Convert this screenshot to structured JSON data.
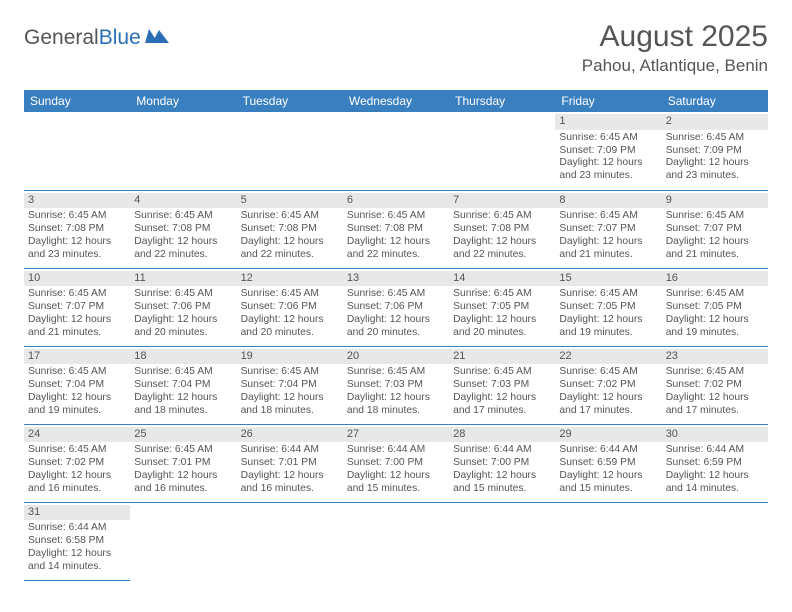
{
  "branding": {
    "logo_part1": "General",
    "logo_part2": "Blue",
    "logo_fill": "#2a6fb5"
  },
  "header": {
    "month_title": "August 2025",
    "location": "Pahou, Atlantique, Benin"
  },
  "styling": {
    "header_bg": "#3a7fc0",
    "header_text": "#ffffff",
    "daynum_bg": "#e8e8e8",
    "border_color": "#3a7fc0",
    "text_color": "#555555",
    "font_family": "Arial"
  },
  "weekdays": [
    "Sunday",
    "Monday",
    "Tuesday",
    "Wednesday",
    "Thursday",
    "Friday",
    "Saturday"
  ],
  "weeks": [
    [
      null,
      null,
      null,
      null,
      null,
      {
        "n": "1",
        "sr": "Sunrise: 6:45 AM",
        "ss": "Sunset: 7:09 PM",
        "dl": "Daylight: 12 hours and 23 minutes."
      },
      {
        "n": "2",
        "sr": "Sunrise: 6:45 AM",
        "ss": "Sunset: 7:09 PM",
        "dl": "Daylight: 12 hours and 23 minutes."
      }
    ],
    [
      {
        "n": "3",
        "sr": "Sunrise: 6:45 AM",
        "ss": "Sunset: 7:08 PM",
        "dl": "Daylight: 12 hours and 23 minutes."
      },
      {
        "n": "4",
        "sr": "Sunrise: 6:45 AM",
        "ss": "Sunset: 7:08 PM",
        "dl": "Daylight: 12 hours and 22 minutes."
      },
      {
        "n": "5",
        "sr": "Sunrise: 6:45 AM",
        "ss": "Sunset: 7:08 PM",
        "dl": "Daylight: 12 hours and 22 minutes."
      },
      {
        "n": "6",
        "sr": "Sunrise: 6:45 AM",
        "ss": "Sunset: 7:08 PM",
        "dl": "Daylight: 12 hours and 22 minutes."
      },
      {
        "n": "7",
        "sr": "Sunrise: 6:45 AM",
        "ss": "Sunset: 7:08 PM",
        "dl": "Daylight: 12 hours and 22 minutes."
      },
      {
        "n": "8",
        "sr": "Sunrise: 6:45 AM",
        "ss": "Sunset: 7:07 PM",
        "dl": "Daylight: 12 hours and 21 minutes."
      },
      {
        "n": "9",
        "sr": "Sunrise: 6:45 AM",
        "ss": "Sunset: 7:07 PM",
        "dl": "Daylight: 12 hours and 21 minutes."
      }
    ],
    [
      {
        "n": "10",
        "sr": "Sunrise: 6:45 AM",
        "ss": "Sunset: 7:07 PM",
        "dl": "Daylight: 12 hours and 21 minutes."
      },
      {
        "n": "11",
        "sr": "Sunrise: 6:45 AM",
        "ss": "Sunset: 7:06 PM",
        "dl": "Daylight: 12 hours and 20 minutes."
      },
      {
        "n": "12",
        "sr": "Sunrise: 6:45 AM",
        "ss": "Sunset: 7:06 PM",
        "dl": "Daylight: 12 hours and 20 minutes."
      },
      {
        "n": "13",
        "sr": "Sunrise: 6:45 AM",
        "ss": "Sunset: 7:06 PM",
        "dl": "Daylight: 12 hours and 20 minutes."
      },
      {
        "n": "14",
        "sr": "Sunrise: 6:45 AM",
        "ss": "Sunset: 7:05 PM",
        "dl": "Daylight: 12 hours and 20 minutes."
      },
      {
        "n": "15",
        "sr": "Sunrise: 6:45 AM",
        "ss": "Sunset: 7:05 PM",
        "dl": "Daylight: 12 hours and 19 minutes."
      },
      {
        "n": "16",
        "sr": "Sunrise: 6:45 AM",
        "ss": "Sunset: 7:05 PM",
        "dl": "Daylight: 12 hours and 19 minutes."
      }
    ],
    [
      {
        "n": "17",
        "sr": "Sunrise: 6:45 AM",
        "ss": "Sunset: 7:04 PM",
        "dl": "Daylight: 12 hours and 19 minutes."
      },
      {
        "n": "18",
        "sr": "Sunrise: 6:45 AM",
        "ss": "Sunset: 7:04 PM",
        "dl": "Daylight: 12 hours and 18 minutes."
      },
      {
        "n": "19",
        "sr": "Sunrise: 6:45 AM",
        "ss": "Sunset: 7:04 PM",
        "dl": "Daylight: 12 hours and 18 minutes."
      },
      {
        "n": "20",
        "sr": "Sunrise: 6:45 AM",
        "ss": "Sunset: 7:03 PM",
        "dl": "Daylight: 12 hours and 18 minutes."
      },
      {
        "n": "21",
        "sr": "Sunrise: 6:45 AM",
        "ss": "Sunset: 7:03 PM",
        "dl": "Daylight: 12 hours and 17 minutes."
      },
      {
        "n": "22",
        "sr": "Sunrise: 6:45 AM",
        "ss": "Sunset: 7:02 PM",
        "dl": "Daylight: 12 hours and 17 minutes."
      },
      {
        "n": "23",
        "sr": "Sunrise: 6:45 AM",
        "ss": "Sunset: 7:02 PM",
        "dl": "Daylight: 12 hours and 17 minutes."
      }
    ],
    [
      {
        "n": "24",
        "sr": "Sunrise: 6:45 AM",
        "ss": "Sunset: 7:02 PM",
        "dl": "Daylight: 12 hours and 16 minutes."
      },
      {
        "n": "25",
        "sr": "Sunrise: 6:45 AM",
        "ss": "Sunset: 7:01 PM",
        "dl": "Daylight: 12 hours and 16 minutes."
      },
      {
        "n": "26",
        "sr": "Sunrise: 6:44 AM",
        "ss": "Sunset: 7:01 PM",
        "dl": "Daylight: 12 hours and 16 minutes."
      },
      {
        "n": "27",
        "sr": "Sunrise: 6:44 AM",
        "ss": "Sunset: 7:00 PM",
        "dl": "Daylight: 12 hours and 15 minutes."
      },
      {
        "n": "28",
        "sr": "Sunrise: 6:44 AM",
        "ss": "Sunset: 7:00 PM",
        "dl": "Daylight: 12 hours and 15 minutes."
      },
      {
        "n": "29",
        "sr": "Sunrise: 6:44 AM",
        "ss": "Sunset: 6:59 PM",
        "dl": "Daylight: 12 hours and 15 minutes."
      },
      {
        "n": "30",
        "sr": "Sunrise: 6:44 AM",
        "ss": "Sunset: 6:59 PM",
        "dl": "Daylight: 12 hours and 14 minutes."
      }
    ],
    [
      {
        "n": "31",
        "sr": "Sunrise: 6:44 AM",
        "ss": "Sunset: 6:58 PM",
        "dl": "Daylight: 12 hours and 14 minutes."
      },
      null,
      null,
      null,
      null,
      null,
      null
    ]
  ]
}
